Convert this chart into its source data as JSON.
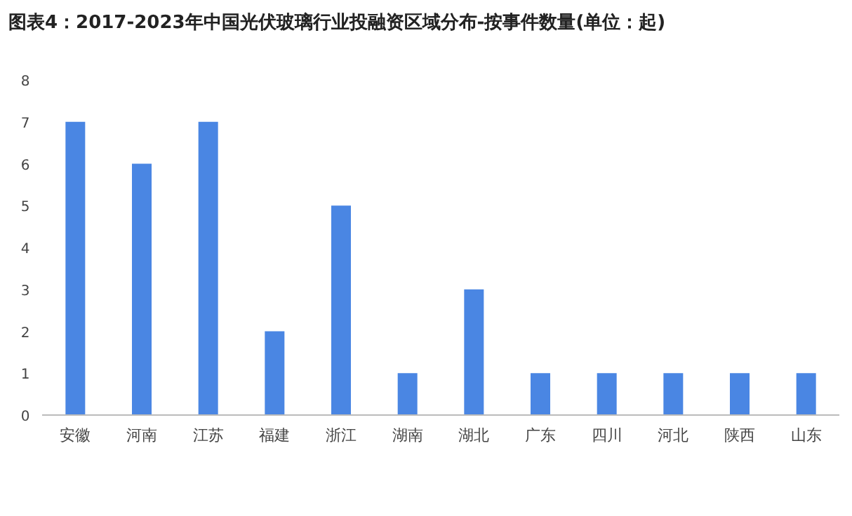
{
  "chart_data": {
    "type": "bar",
    "title": "图表4：2017-2023年中国光伏玻璃行业投融资区域分布-按事件数量(单位：起)",
    "categories": [
      "安徽",
      "河南",
      "江苏",
      "福建",
      "浙江",
      "湖南",
      "湖北",
      "广东",
      "四川",
      "河北",
      "陕西",
      "山东"
    ],
    "values": [
      7,
      6,
      7,
      2,
      5,
      1,
      3,
      1,
      1,
      1,
      1,
      1
    ],
    "color": "#4a86e3",
    "ylim": [
      0,
      8
    ],
    "yticks": [
      0,
      1,
      2,
      3,
      4,
      5,
      6,
      7,
      8
    ],
    "grid": false
  }
}
